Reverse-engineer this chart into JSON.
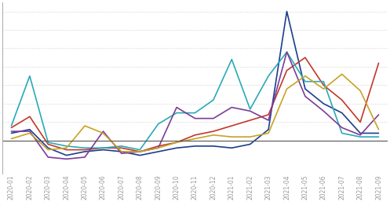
{
  "x_labels": [
    "2020-01",
    "2020-02",
    "2020-03",
    "2020-04",
    "2020-05",
    "2020-06",
    "2020-07",
    "2020-08",
    "2020-09",
    "2020-10",
    "2020-11",
    "2020-12",
    "2021-01",
    "2021-02",
    "2021-03",
    "2021-04",
    "2021-05",
    "2021-06",
    "2021-07",
    "2021-08",
    "2021-09"
  ],
  "series": [
    {
      "name": "dark_blue",
      "color": "#1a3f8f",
      "linewidth": 1.2,
      "data": [
        0.04,
        0.06,
        -0.04,
        -0.08,
        -0.06,
        -0.05,
        -0.06,
        -0.08,
        -0.06,
        -0.04,
        -0.03,
        -0.03,
        -0.04,
        -0.02,
        0.06,
        0.7,
        0.28,
        0.2,
        0.15,
        0.04,
        0.04
      ]
    },
    {
      "name": "red",
      "color": "#c0392b",
      "linewidth": 1.2,
      "data": [
        0.07,
        0.13,
        -0.02,
        -0.05,
        -0.05,
        -0.04,
        -0.04,
        -0.06,
        -0.03,
        -0.01,
        0.03,
        0.05,
        0.08,
        0.11,
        0.14,
        0.38,
        0.45,
        0.3,
        0.22,
        0.1,
        0.42
      ]
    },
    {
      "name": "teal",
      "color": "#2aaab8",
      "linewidth": 1.2,
      "data": [
        0.08,
        0.35,
        -0.01,
        -0.03,
        -0.04,
        -0.04,
        -0.03,
        -0.05,
        0.09,
        0.15,
        0.15,
        0.22,
        0.44,
        0.17,
        0.35,
        0.48,
        0.32,
        0.32,
        0.04,
        0.02,
        0.02
      ]
    },
    {
      "name": "purple",
      "color": "#7d3c98",
      "linewidth": 1.2,
      "data": [
        0.05,
        0.05,
        -0.09,
        -0.1,
        -0.09,
        0.05,
        -0.07,
        -0.06,
        -0.04,
        0.18,
        0.12,
        0.12,
        0.18,
        0.16,
        0.11,
        0.48,
        0.24,
        0.16,
        0.07,
        0.03,
        0.14
      ]
    },
    {
      "name": "gold",
      "color": "#c9a227",
      "linewidth": 1.2,
      "data": [
        0.01,
        0.04,
        -0.05,
        -0.04,
        0.08,
        0.04,
        -0.06,
        -0.06,
        -0.04,
        -0.01,
        0.01,
        0.03,
        0.02,
        0.02,
        0.04,
        0.28,
        0.35,
        0.28,
        0.36,
        0.27,
        0.06
      ]
    }
  ],
  "ylim": [
    -0.18,
    0.75
  ],
  "y_ticks": [
    0.0,
    0.1,
    0.2,
    0.3,
    0.4,
    0.5,
    0.6,
    0.7
  ],
  "background_color": "#ffffff",
  "grid_color": "#c8c8c8",
  "tick_label_color": "#999999",
  "tick_label_fontsize": 5.5,
  "zero_line_color": "#555555",
  "spine_color": "#aaaaaa"
}
